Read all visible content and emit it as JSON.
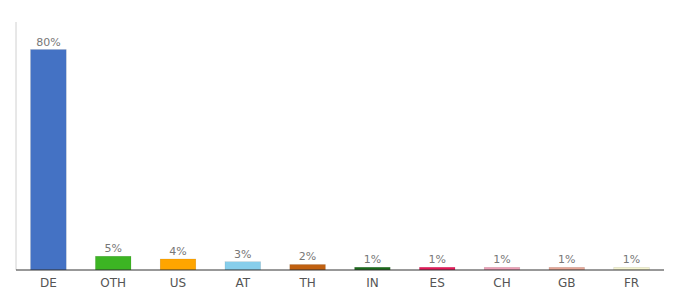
{
  "chart_data": {
    "type": "bar",
    "categories": [
      "DE",
      "OTH",
      "US",
      "AT",
      "TH",
      "IN",
      "ES",
      "CH",
      "GB",
      "FR"
    ],
    "values": [
      80,
      5,
      4,
      3,
      2,
      1,
      1,
      1,
      1,
      1
    ],
    "value_labels": [
      "80%",
      "5%",
      "4%",
      "3%",
      "2%",
      "1%",
      "1%",
      "1%",
      "1%",
      "1%"
    ],
    "colors": [
      "#4472C4",
      "#3CB523",
      "#FFA500",
      "#87CEEB",
      "#C06010",
      "#1A6B1A",
      "#E8195A",
      "#F0A0B8",
      "#E8A898",
      "#F5F5D0"
    ],
    "ylim": [
      0,
      90
    ],
    "data_labels": true,
    "tick_labels": "x",
    "grid": false
  }
}
